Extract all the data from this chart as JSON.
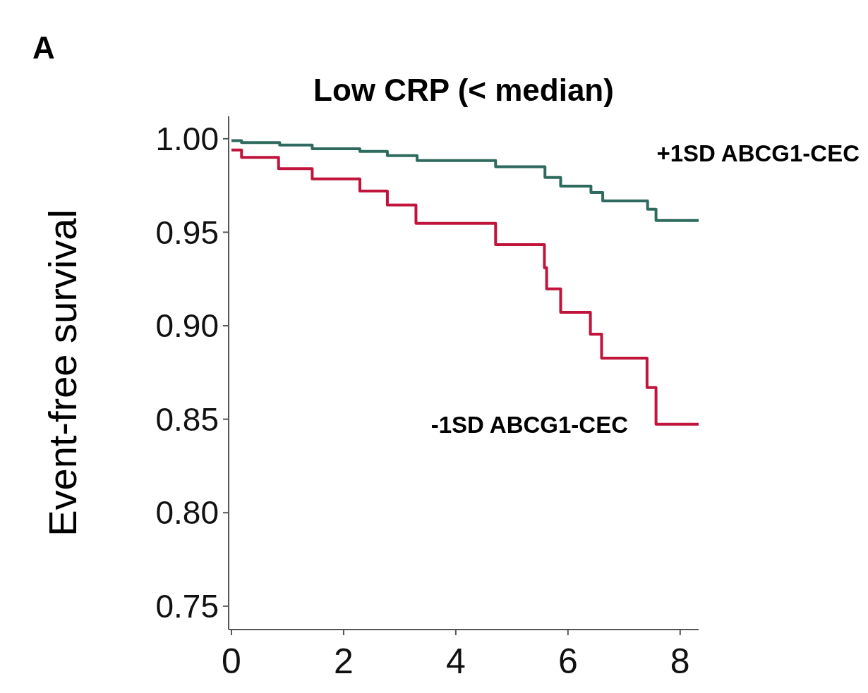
{
  "chart_data": {
    "type": "step",
    "title": "Low CRP (< median)",
    "ylabel": "Event-free survival",
    "annotations": [
      "A"
    ],
    "xlim": [
      -0.05,
      8.33
    ],
    "xticks": [
      0,
      2,
      4,
      6,
      8
    ],
    "ylim": [
      0.7375,
      1.012
    ],
    "yticks": [
      {
        "value": 1,
        "label": "1.00"
      },
      {
        "value": 0.95,
        "label": "0.95"
      },
      {
        "value": 0.9,
        "label": "0.90"
      },
      {
        "value": 0.85,
        "label": "0.85"
      },
      {
        "value": 0.8,
        "label": "0.80"
      },
      {
        "value": 0.75,
        "label": "0.75"
      }
    ],
    "grid": false,
    "series": [
      {
        "name": "+1SD ABCG1-CEC",
        "color": "#2e6b5e",
        "x": [
          0,
          0.18,
          0.86,
          1.44,
          2.29,
          2.78,
          3.31,
          4.71,
          5.59,
          5.87,
          6.41,
          6.62,
          7.42,
          7.57,
          8.33
        ],
        "values": [
          0.999,
          0.998,
          0.9966,
          0.9947,
          0.9932,
          0.991,
          0.9883,
          0.985,
          0.9793,
          0.9747,
          0.9713,
          0.9668,
          0.9623,
          0.9563,
          0.9563
        ]
      },
      {
        "name": "-1SD ABCG1-CEC",
        "color": "#c0143c",
        "x": [
          0,
          0.18,
          0.84,
          1.44,
          2.29,
          2.78,
          3.29,
          4.71,
          5.58,
          5.62,
          5.87,
          6.4,
          6.6,
          7.41,
          7.57,
          8.33
        ],
        "values": [
          0.994,
          0.99,
          0.984,
          0.9785,
          0.972,
          0.9646,
          0.9548,
          0.9434,
          0.931,
          0.9197,
          0.9072,
          0.8955,
          0.8827,
          0.8669,
          0.8473,
          0.8473
        ]
      }
    ]
  }
}
